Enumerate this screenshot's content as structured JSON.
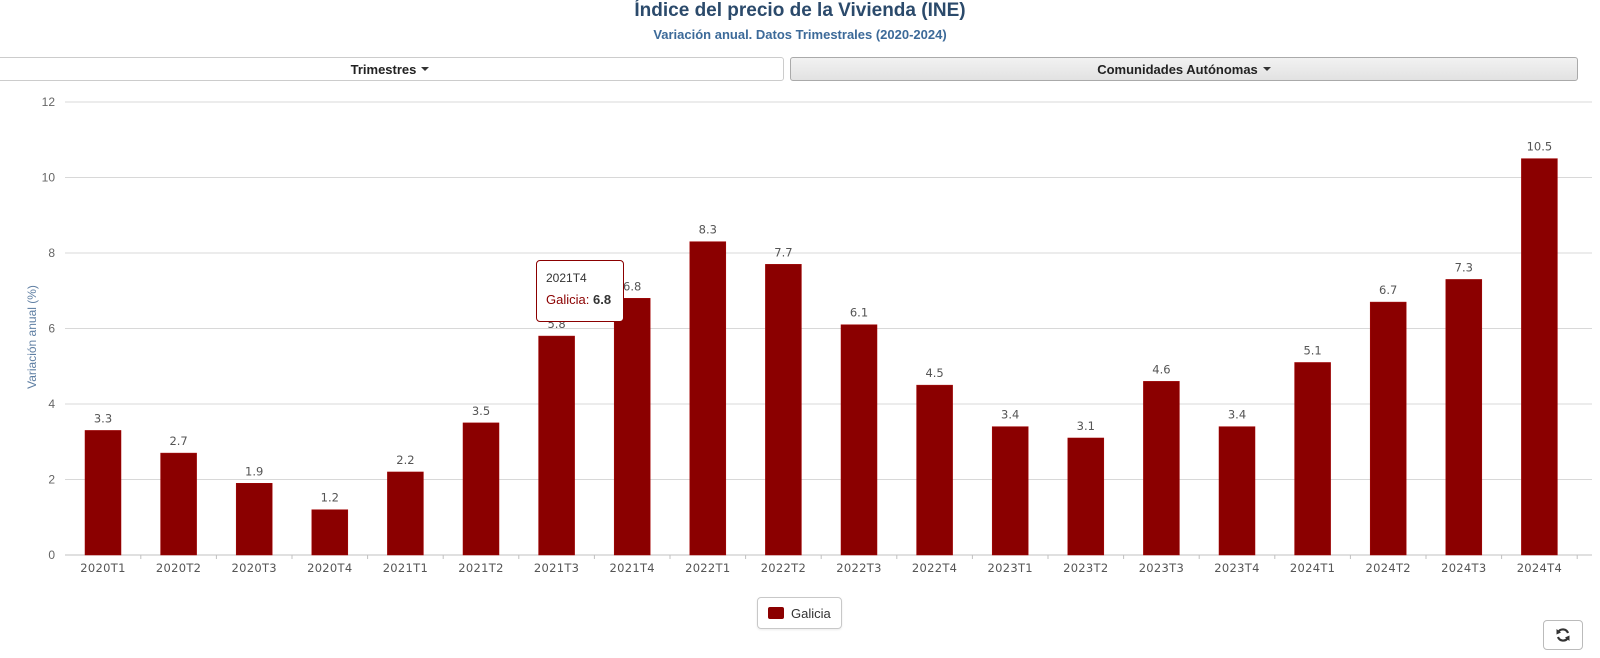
{
  "header": {
    "title": "Índice del precio de la Vivienda (INE)",
    "subtitle": "Variación anual. Datos Trimestrales (2020-2024)"
  },
  "controls": {
    "trimestres_label": "Trimestres",
    "comunidades_label": "Comunidades Autónomas"
  },
  "tooltip": {
    "category": "2021T4",
    "series": "Galicia",
    "value": "6.8"
  },
  "legend": {
    "label": "Galicia"
  },
  "refresh_icon": "refresh-icon",
  "colors": {
    "bar": "#8b0000",
    "title": "#2b4a6b",
    "subtitle": "#3c6a99",
    "axis_label": "#5f7fa3",
    "grid": "#d8d8d8"
  },
  "chart_data": {
    "type": "bar",
    "title": "Índice del precio de la Vivienda (INE)",
    "subtitle": "Variación anual. Datos Trimestrales (2020-2024)",
    "xlabel": "",
    "ylabel": "Variación anual (%)",
    "ylim": [
      0,
      12
    ],
    "yticks": [
      0,
      2,
      4,
      6,
      8,
      10,
      12
    ],
    "grid": true,
    "legend_position": "bottom-center",
    "categories": [
      "2020T1",
      "2020T2",
      "2020T3",
      "2020T4",
      "2021T1",
      "2021T2",
      "2021T3",
      "2021T4",
      "2022T1",
      "2022T2",
      "2022T3",
      "2022T4",
      "2023T1",
      "2023T2",
      "2023T3",
      "2023T4",
      "2024T1",
      "2024T2",
      "2024T3",
      "2024T4"
    ],
    "series": [
      {
        "name": "Galicia",
        "color": "#8b0000",
        "values": [
          3.3,
          2.7,
          1.9,
          1.2,
          2.2,
          3.5,
          5.8,
          6.8,
          8.3,
          7.7,
          6.1,
          4.5,
          3.4,
          3.1,
          4.6,
          3.4,
          5.1,
          6.7,
          7.3,
          10.5
        ]
      }
    ],
    "data_labels": true
  }
}
